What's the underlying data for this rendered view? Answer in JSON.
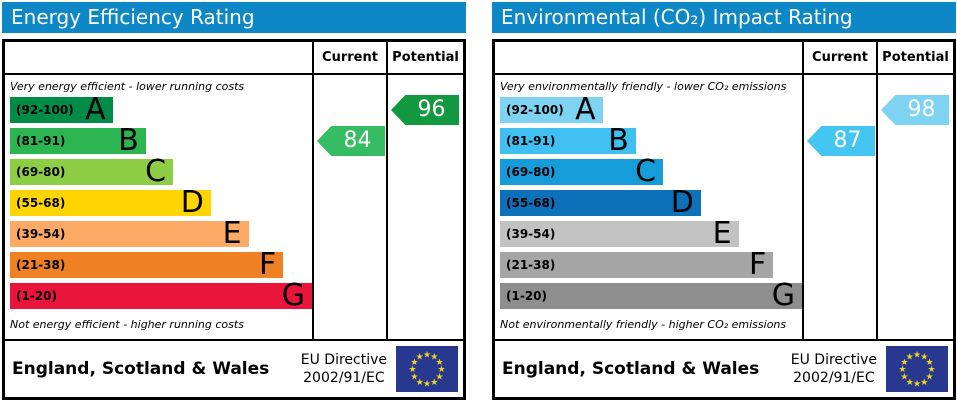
{
  "chart_data": [
    {
      "type": "bar",
      "title": "Energy Efficiency Rating",
      "categories": [
        "A (92-100)",
        "B (81-91)",
        "C (69-80)",
        "D (55-68)",
        "E (39-54)",
        "F (21-38)",
        "G (1-20)"
      ],
      "values": [
        34,
        45,
        54,
        66.5,
        79,
        90.5,
        100
      ],
      "current": 84,
      "potential": 96,
      "top_label": "Very energy efficient - lower running costs",
      "bottom_label": "Not energy efficient - higher running costs",
      "legend_position": "none",
      "footer": "England, Scotland & Wales, EU Directive 2002/91/EC"
    },
    {
      "type": "bar",
      "title": "Environmental (CO₂) Impact Rating",
      "categories": [
        "A (92-100)",
        "B (81-91)",
        "C (69-80)",
        "D (55-68)",
        "E (39-54)",
        "F (21-38)",
        "G (1-20)"
      ],
      "values": [
        34,
        45,
        54,
        66.5,
        79,
        90.5,
        100
      ],
      "current": 87,
      "potential": 98,
      "top_label": "Very environmentally friendly - lower CO₂ emissions",
      "bottom_label": "Not environmentally friendly - higher CO₂ emissions",
      "legend_position": "none",
      "footer": "England, Scotland & Wales, EU Directive 2002/91/EC"
    }
  ],
  "panels": [
    {
      "title": "Energy Efficiency Rating",
      "columns": {
        "current": "Current",
        "potential": "Potential"
      },
      "top_caption": "Very energy efficient - lower running costs",
      "bottom_caption": "Not energy efficient - higher running costs",
      "bands": [
        {
          "range": "(92-100)",
          "letter": "A",
          "color": "#008c47",
          "width_pct": 34
        },
        {
          "range": "(81-91)",
          "letter": "B",
          "color": "#2db551",
          "width_pct": 45
        },
        {
          "range": "(69-80)",
          "letter": "C",
          "color": "#8dce46",
          "width_pct": 54
        },
        {
          "range": "(55-68)",
          "letter": "D",
          "color": "#ffd500",
          "width_pct": 66.5
        },
        {
          "range": "(39-54)",
          "letter": "E",
          "color": "#fcaa65",
          "width_pct": 79
        },
        {
          "range": "(21-38)",
          "letter": "F",
          "color": "#ef8023",
          "width_pct": 90.5
        },
        {
          "range": "(1-20)",
          "letter": "G",
          "color": "#e9153b",
          "width_pct": 100
        }
      ],
      "current": {
        "value": "84",
        "color": "#36bd63",
        "band_index": 1
      },
      "potential": {
        "value": "96",
        "color": "#12993f",
        "band_index": 0
      },
      "footer": {
        "region": "England, Scotland & Wales",
        "directive_line1": "EU Directive",
        "directive_line2": "2002/91/EC"
      }
    },
    {
      "title": "Environmental (CO₂) Impact Rating",
      "columns": {
        "current": "Current",
        "potential": "Potential"
      },
      "top_caption": "Very environmentally friendly - lower CO₂ emissions",
      "bottom_caption": "Not environmentally friendly - higher CO₂ emissions",
      "bands": [
        {
          "range": "(92-100)",
          "letter": "A",
          "color": "#7fd3f2",
          "width_pct": 34
        },
        {
          "range": "(81-91)",
          "letter": "B",
          "color": "#3fc0f0",
          "width_pct": 45
        },
        {
          "range": "(69-80)",
          "letter": "C",
          "color": "#169cd8",
          "width_pct": 54
        },
        {
          "range": "(55-68)",
          "letter": "D",
          "color": "#0c71b8",
          "width_pct": 66.5
        },
        {
          "range": "(39-54)",
          "letter": "E",
          "color": "#c2c2c2",
          "width_pct": 79
        },
        {
          "range": "(21-38)",
          "letter": "F",
          "color": "#a5a5a5",
          "width_pct": 90.5
        },
        {
          "range": "(1-20)",
          "letter": "G",
          "color": "#8e8e8e",
          "width_pct": 100
        }
      ],
      "current": {
        "value": "87",
        "color": "#45c5f2",
        "band_index": 1
      },
      "potential": {
        "value": "98",
        "color": "#7ed3f3",
        "band_index": 0
      },
      "footer": {
        "region": "England, Scotland & Wales",
        "directive_line1": "EU Directive",
        "directive_line2": "2002/91/EC"
      }
    }
  ],
  "flag": {
    "background": "#29388f",
    "star_color": "#f0d41c"
  }
}
